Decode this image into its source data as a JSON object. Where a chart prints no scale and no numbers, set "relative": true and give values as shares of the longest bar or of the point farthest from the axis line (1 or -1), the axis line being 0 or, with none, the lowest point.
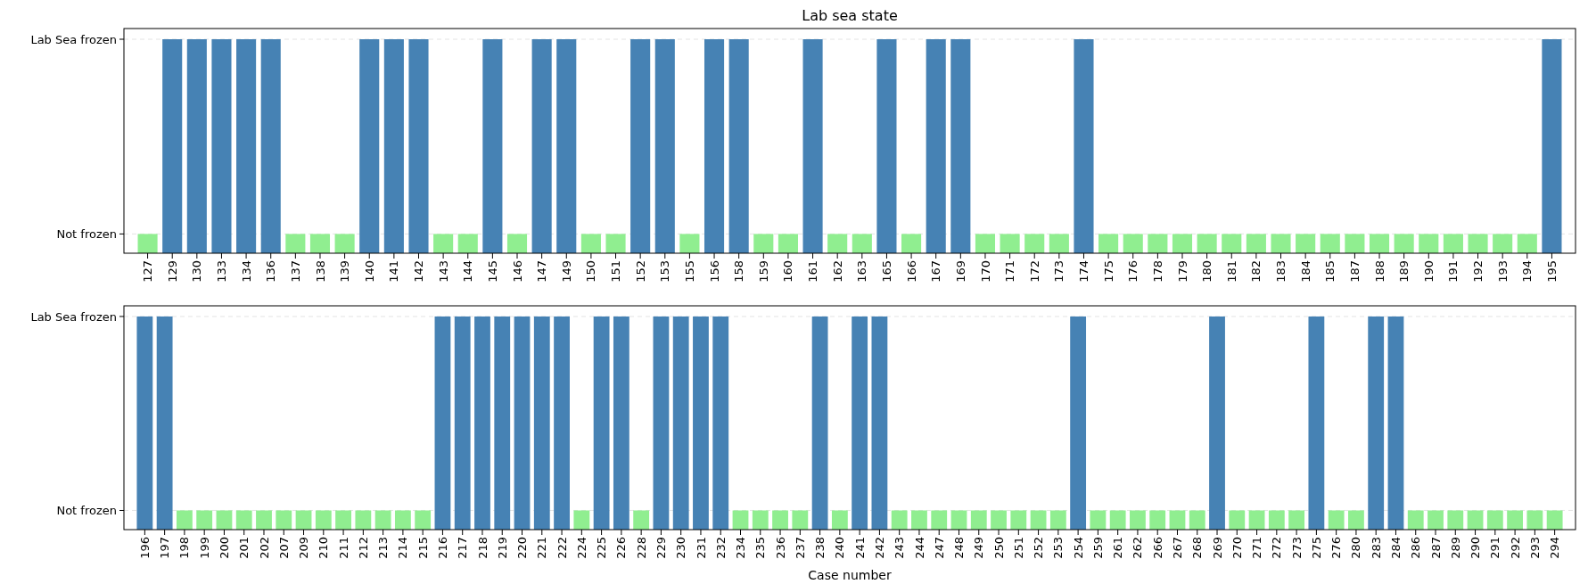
{
  "chart_data": [
    {
      "type": "bar",
      "title": "Lab sea state",
      "relative": true,
      "categories": [
        "127",
        "129",
        "130",
        "133",
        "134",
        "136",
        "137",
        "138",
        "139",
        "140",
        "141",
        "142",
        "143",
        "144",
        "145",
        "146",
        "147",
        "149",
        "150",
        "151",
        "152",
        "153",
        "155",
        "156",
        "158",
        "159",
        "160",
        "161",
        "162",
        "163",
        "165",
        "166",
        "167",
        "169",
        "170",
        "171",
        "172",
        "173",
        "174",
        "175",
        "176",
        "178",
        "179",
        "180",
        "181",
        "182",
        "183",
        "184",
        "185",
        "187",
        "188",
        "189",
        "190",
        "191",
        "192",
        "193",
        "194",
        "195"
      ],
      "values": [
        0.09,
        1,
        1,
        1,
        1,
        1,
        0.09,
        0.09,
        0.09,
        1,
        1,
        1,
        0.09,
        0.09,
        1,
        0.09,
        1,
        1,
        0.09,
        0.09,
        1,
        1,
        0.09,
        1,
        1,
        0.09,
        0.09,
        1,
        0.09,
        0.09,
        1,
        0.09,
        1,
        1,
        0.09,
        0.09,
        0.09,
        0.09,
        1,
        0.09,
        0.09,
        0.09,
        0.09,
        0.09,
        0.09,
        0.09,
        0.09,
        0.09,
        0.09,
        0.09,
        0.09,
        0.09,
        0.09,
        0.09,
        0.09,
        0.09,
        0.09,
        1
      ],
      "colors": [
        "#90ee90",
        "#4682b4",
        "#4682b4",
        "#4682b4",
        "#4682b4",
        "#4682b4",
        "#90ee90",
        "#90ee90",
        "#90ee90",
        "#4682b4",
        "#4682b4",
        "#4682b4",
        "#90ee90",
        "#90ee90",
        "#4682b4",
        "#90ee90",
        "#4682b4",
        "#4682b4",
        "#90ee90",
        "#90ee90",
        "#4682b4",
        "#4682b4",
        "#90ee90",
        "#4682b4",
        "#4682b4",
        "#90ee90",
        "#90ee90",
        "#4682b4",
        "#90ee90",
        "#90ee90",
        "#4682b4",
        "#90ee90",
        "#4682b4",
        "#4682b4",
        "#90ee90",
        "#90ee90",
        "#90ee90",
        "#90ee90",
        "#4682b4",
        "#90ee90",
        "#90ee90",
        "#90ee90",
        "#90ee90",
        "#90ee90",
        "#90ee90",
        "#90ee90",
        "#90ee90",
        "#90ee90",
        "#90ee90",
        "#90ee90",
        "#90ee90",
        "#90ee90",
        "#90ee90",
        "#90ee90",
        "#90ee90",
        "#90ee90",
        "#90ee90",
        "#4682b4"
      ],
      "ref_lines": [
        {
          "axis": "y",
          "value": 0.09,
          "label": "Not frozen",
          "color": "#dddddd",
          "line_style": "dashed"
        },
        {
          "axis": "y",
          "value": 1,
          "label": "Lab Sea frozen",
          "color": "#dddddd",
          "line_style": "dashed"
        }
      ]
    },
    {
      "type": "bar",
      "xlabel": "Case number",
      "relative": true,
      "categories": [
        "196",
        "197",
        "198",
        "199",
        "200",
        "201",
        "202",
        "207",
        "209",
        "210",
        "211",
        "212",
        "213",
        "214",
        "215",
        "216",
        "217",
        "218",
        "219",
        "220",
        "221",
        "222",
        "224",
        "225",
        "226",
        "228",
        "229",
        "230",
        "231",
        "232",
        "234",
        "235",
        "236",
        "237",
        "238",
        "240",
        "241",
        "242",
        "243",
        "244",
        "247",
        "248",
        "249",
        "250",
        "251",
        "252",
        "253",
        "254",
        "259",
        "261",
        "262",
        "266",
        "267",
        "268",
        "269",
        "270",
        "271",
        "272",
        "273",
        "275",
        "276",
        "280",
        "283",
        "284",
        "286",
        "287",
        "289",
        "290",
        "291",
        "292",
        "293",
        "294"
      ],
      "values": [
        1,
        1,
        0.09,
        0.09,
        0.09,
        0.09,
        0.09,
        0.09,
        0.09,
        0.09,
        0.09,
        0.09,
        0.09,
        0.09,
        0.09,
        1,
        1,
        1,
        1,
        1,
        1,
        1,
        0.09,
        1,
        1,
        0.09,
        1,
        1,
        1,
        1,
        0.09,
        0.09,
        0.09,
        0.09,
        1,
        0.09,
        1,
        1,
        0.09,
        0.09,
        0.09,
        0.09,
        0.09,
        0.09,
        0.09,
        0.09,
        0.09,
        1,
        0.09,
        0.09,
        0.09,
        0.09,
        0.09,
        0.09,
        1,
        0.09,
        0.09,
        0.09,
        0.09,
        1,
        0.09,
        0.09,
        1,
        1,
        0.09,
        0.09,
        0.09,
        0.09,
        0.09,
        0.09,
        0.09,
        0.09
      ],
      "colors": [
        "#4682b4",
        "#4682b4",
        "#90ee90",
        "#90ee90",
        "#90ee90",
        "#90ee90",
        "#90ee90",
        "#90ee90",
        "#90ee90",
        "#90ee90",
        "#90ee90",
        "#90ee90",
        "#90ee90",
        "#90ee90",
        "#90ee90",
        "#4682b4",
        "#4682b4",
        "#4682b4",
        "#4682b4",
        "#4682b4",
        "#4682b4",
        "#4682b4",
        "#90ee90",
        "#4682b4",
        "#4682b4",
        "#90ee90",
        "#4682b4",
        "#4682b4",
        "#4682b4",
        "#4682b4",
        "#90ee90",
        "#90ee90",
        "#90ee90",
        "#90ee90",
        "#4682b4",
        "#90ee90",
        "#4682b4",
        "#4682b4",
        "#90ee90",
        "#90ee90",
        "#90ee90",
        "#90ee90",
        "#90ee90",
        "#90ee90",
        "#90ee90",
        "#90ee90",
        "#90ee90",
        "#4682b4",
        "#90ee90",
        "#90ee90",
        "#90ee90",
        "#90ee90",
        "#90ee90",
        "#90ee90",
        "#4682b4",
        "#90ee90",
        "#90ee90",
        "#90ee90",
        "#90ee90",
        "#4682b4",
        "#90ee90",
        "#90ee90",
        "#4682b4",
        "#4682b4",
        "#90ee90",
        "#90ee90",
        "#90ee90",
        "#90ee90",
        "#90ee90",
        "#90ee90",
        "#90ee90",
        "#90ee90"
      ],
      "ref_lines": [
        {
          "axis": "y",
          "value": 0.09,
          "label": "Not frozen",
          "color": "#dddddd",
          "line_style": "dashed"
        },
        {
          "axis": "y",
          "value": 1,
          "label": "Lab Sea frozen",
          "color": "#dddddd",
          "line_style": "dashed"
        }
      ]
    }
  ]
}
